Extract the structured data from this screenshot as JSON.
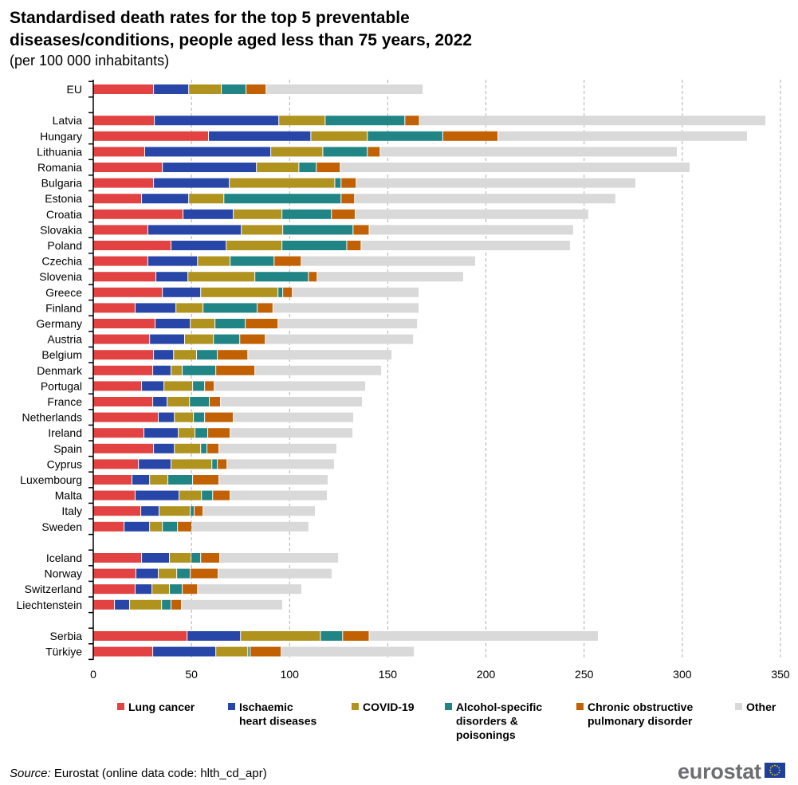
{
  "chart_data": {
    "type": "bar",
    "orientation": "horizontal",
    "stacked": true,
    "title_line1": "Standardised death rates for the top 5 preventable",
    "title_line2": "diseases/conditions, people aged less than 75 years, 2022",
    "subtitle": "(per 100 000 inhabitants)",
    "xlim": [
      0,
      350
    ],
    "xticks": [
      "0",
      "50",
      "100",
      "150",
      "200",
      "250",
      "300",
      "350"
    ],
    "grid": "vertical dashed",
    "legend_placement": "bottom",
    "categories": [
      "EU",
      "",
      "Latvia",
      "Hungary",
      "Lithuania",
      "Romania",
      "Bulgaria",
      "Estonia",
      "Croatia",
      "Slovakia",
      "Poland",
      "Czechia",
      "Slovenia",
      "Greece",
      "Finland",
      "Germany",
      "Austria",
      "Belgium",
      "Denmark",
      "Portugal",
      "France",
      "Netherlands",
      "Ireland",
      "Spain",
      "Cyprus",
      "Luxembourg",
      "Malta",
      "Italy",
      "Sweden",
      "",
      "Iceland",
      "Norway",
      "Switzerland",
      "Liechtenstein",
      "",
      "Serbia",
      "Türkiye"
    ],
    "series": [
      {
        "name": "Lung cancer",
        "legend_lines": [
          "Lung cancer"
        ],
        "color": "#e24242",
        "values": [
          30.9,
          null,
          31.3,
          58.9,
          26.4,
          35.4,
          30.9,
          24.8,
          45.9,
          28.0,
          39.8,
          28.0,
          32.1,
          35.4,
          21.5,
          31.7,
          28.9,
          30.9,
          30.5,
          24.8,
          30.5,
          33.3,
          26.0,
          30.9,
          23.2,
          19.9,
          21.5,
          24.4,
          15.9,
          null,
          24.8,
          21.9,
          21.5,
          11.0,
          null,
          48.0,
          30.5
        ]
      },
      {
        "name": "Ischaemic heart diseases",
        "legend_lines": [
          "Ischaemic",
          "heart diseases"
        ],
        "color": "#2846a8",
        "values": [
          17.9,
          null,
          63.4,
          52.1,
          64.2,
          47.9,
          38.6,
          24.0,
          25.6,
          47.6,
          28.1,
          25.3,
          16.3,
          19.5,
          20.8,
          17.9,
          17.8,
          10.2,
          9.3,
          11.4,
          7.3,
          8.2,
          17.5,
          10.6,
          16.6,
          9.0,
          22.4,
          9.3,
          13.0,
          null,
          14.2,
          11.4,
          8.6,
          7.7,
          null,
          27.2,
          32.1
        ]
      },
      {
        "name": "COVID-19",
        "legend_lines": [
          "COVID-19"
        ],
        "color": "#b0921f",
        "values": [
          16.6,
          null,
          23.6,
          28.8,
          26.5,
          21.6,
          53.7,
          17.9,
          24.8,
          21.1,
          28.4,
          16.6,
          34.1,
          39.4,
          13.8,
          12.6,
          14.7,
          11.7,
          5.7,
          14.6,
          11.4,
          9.7,
          8.5,
          13.4,
          20.8,
          9.3,
          11.4,
          15.9,
          6.5,
          null,
          11.0,
          9.4,
          8.9,
          16.3,
          null,
          40.7,
          16.3
        ]
      },
      {
        "name": "Alcohol-specific disorders & poisonings",
        "legend_lines": [
          "Alcohol-specific",
          "disorders &",
          "poisonings"
        ],
        "color": "#218585",
        "values": [
          12.6,
          null,
          40.6,
          38.4,
          22.7,
          8.9,
          3.2,
          59.7,
          25.2,
          35.8,
          33.0,
          22.4,
          27.3,
          2.4,
          27.6,
          15.4,
          13.4,
          10.6,
          17.1,
          6.1,
          10.1,
          5.7,
          6.5,
          3.2,
          2.8,
          12.6,
          5.7,
          2.0,
          7.7,
          null,
          4.9,
          6.9,
          6.5,
          4.8,
          null,
          11.3,
          1.2
        ]
      },
      {
        "name": "Chronic obstructive pulmonary disorder",
        "legend_lines": [
          "Chronic obstructive",
          "pulmonary disorder"
        ],
        "color": "#c26004",
        "values": [
          10.2,
          null,
          7.4,
          28.1,
          6.5,
          12.2,
          7.7,
          6.9,
          12.1,
          8.2,
          7.3,
          13.8,
          4.4,
          4.9,
          8.0,
          16.7,
          13.0,
          15.5,
          19.9,
          4.9,
          5.7,
          14.6,
          11.4,
          6.1,
          4.9,
          13.4,
          8.9,
          4.5,
          7.3,
          null,
          9.7,
          14.2,
          7.8,
          5.3,
          null,
          13.5,
          15.8
        ]
      },
      {
        "name": "Other",
        "legend_lines": [
          "Other"
        ],
        "color": "#d9d9d9",
        "values": [
          80.0,
          null,
          176.4,
          127.0,
          151.3,
          178.1,
          142.4,
          133.0,
          118.9,
          104.1,
          106.6,
          88.8,
          74.6,
          64.5,
          74.4,
          71.0,
          75.5,
          73.4,
          64.5,
          77.1,
          72.3,
          61.3,
          62.5,
          60.0,
          54.7,
          55.6,
          49.5,
          57.2,
          59.6,
          null,
          60.5,
          58.0,
          53.1,
          51.5,
          null,
          116.7,
          67.8
        ]
      }
    ]
  },
  "source": {
    "label": "Source:",
    "text": " Eurostat (online data code: hlth_cd_apr)"
  },
  "logo": {
    "text": "eurostat",
    "flag_color": "#1f3f99",
    "star_color": "#f5d800"
  }
}
